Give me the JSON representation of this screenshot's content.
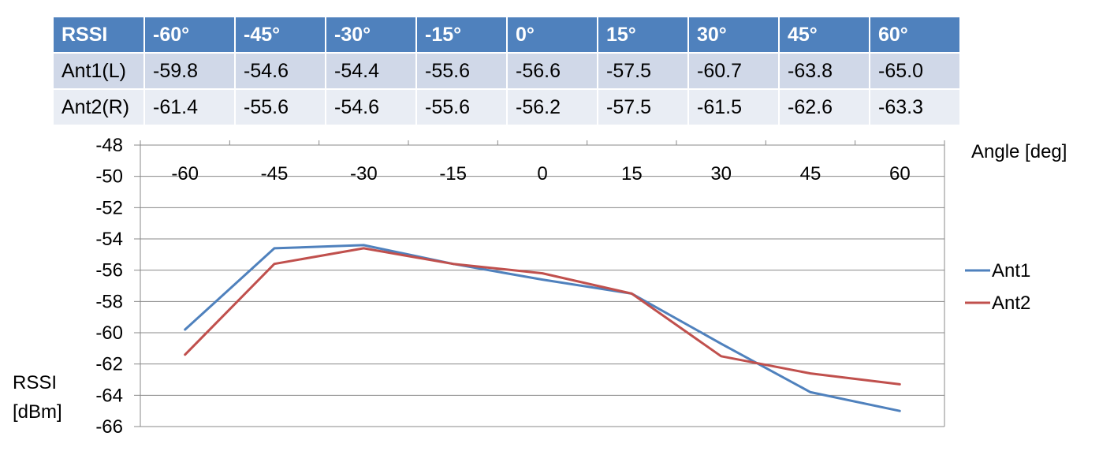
{
  "table": {
    "headers": [
      "RSSI",
      "-60°",
      "-45°",
      "-30°",
      "-15°",
      "0°",
      "15°",
      "30°",
      "45°",
      "60°"
    ],
    "rows": [
      [
        "Ant1(L)",
        "-59.8",
        "-54.6",
        "-54.4",
        "-55.6",
        "-56.6",
        "-57.5",
        "-60.7",
        "-63.8",
        "-65.0"
      ],
      [
        "Ant2(R)",
        "-61.4",
        "-55.6",
        "-54.6",
        "-55.6",
        "-56.2",
        "-57.5",
        "-61.5",
        "-62.6",
        "-63.3"
      ]
    ]
  },
  "chart_data": {
    "type": "line",
    "xlabel": "Angle [deg]",
    "ylabel_line1": "RSSI",
    "ylabel_line2": "[dBm]",
    "categories": [
      "-60",
      "-45",
      "-30",
      "-15",
      "0",
      "15",
      "30",
      "45",
      "60"
    ],
    "y_ticks": [
      "-48",
      "-50",
      "-52",
      "-54",
      "-56",
      "-58",
      "-60",
      "-62",
      "-64",
      "-66"
    ],
    "ylim": [
      -66,
      -48
    ],
    "y_inverted": false,
    "x_axis_position": "top",
    "grid": true,
    "legend_position": "right",
    "series": [
      {
        "name": "Ant1",
        "color": "#4f81bd",
        "values": [
          -59.8,
          -54.6,
          -54.4,
          -55.6,
          -56.6,
          -57.5,
          -60.7,
          -63.8,
          -65.0
        ]
      },
      {
        "name": "Ant2",
        "color": "#c0504d",
        "values": [
          -61.4,
          -55.6,
          -54.6,
          -55.6,
          -56.2,
          -57.5,
          -61.5,
          -62.6,
          -63.3
        ]
      }
    ]
  }
}
